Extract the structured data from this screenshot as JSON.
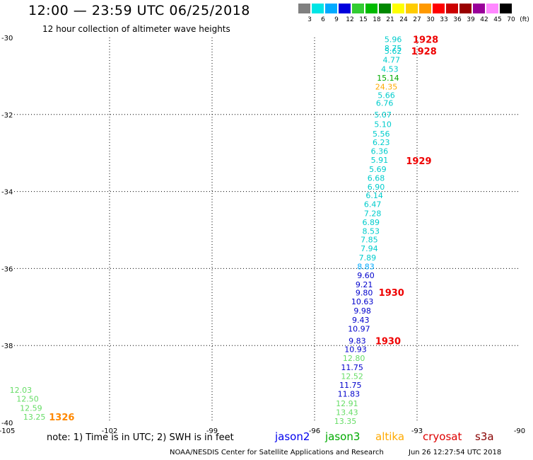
{
  "header": {
    "title": "12:00 — 23:59 UTC 06/25/2018",
    "subtitle": "12 hour collection of altimeter wave heights"
  },
  "colorbar": {
    "labels": [
      "3",
      "6",
      "9",
      "12",
      "15",
      "18",
      "21",
      "24",
      "27",
      "30",
      "33",
      "36",
      "39",
      "42",
      "45",
      "70"
    ],
    "unit": "(ft)",
    "colors": [
      "#808080",
      "#00e5e5",
      "#00aaff",
      "#0000dd",
      "#33cc33",
      "#00bb00",
      "#008800",
      "#ffff00",
      "#ffcc00",
      "#ff9900",
      "#ff0000",
      "#cc0000",
      "#990000",
      "#990099",
      "#ff88ff",
      "#000000"
    ]
  },
  "axes": {
    "x_ticks": [
      {
        "value": -105,
        "label": "-105"
      },
      {
        "value": -102,
        "label": "-102"
      },
      {
        "value": -99,
        "label": "-99"
      },
      {
        "value": -96,
        "label": "-96"
      },
      {
        "value": -93,
        "label": "-93"
      },
      {
        "value": -90,
        "label": "-90"
      }
    ],
    "y_ticks": [
      {
        "value": -30,
        "label": "-30"
      },
      {
        "value": -32,
        "label": "-32"
      },
      {
        "value": -34,
        "label": "-34"
      },
      {
        "value": -36,
        "label": "-36"
      },
      {
        "value": -38,
        "label": "-38"
      },
      {
        "value": -40,
        "label": "-40"
      }
    ]
  },
  "observations": [
    {
      "lon": -93.7,
      "lat": -30.05,
      "v": "5.96",
      "c": "#00cccc"
    },
    {
      "lon": -93.7,
      "lat": -30.28,
      "v": "8.75",
      "c": "#00cccc"
    },
    {
      "lon": -93.7,
      "lat": -30.35,
      "v": "5.62",
      "c": "#00cccc"
    },
    {
      "lon": -93.75,
      "lat": -30.58,
      "v": "4.77",
      "c": "#00cccc"
    },
    {
      "lon": -93.8,
      "lat": -30.82,
      "v": "4.53",
      "c": "#00cccc"
    },
    {
      "lon": -93.85,
      "lat": -31.05,
      "v": "15.14",
      "c": "#00aa00"
    },
    {
      "lon": -93.9,
      "lat": -31.28,
      "v": "24.35",
      "c": "#ffaa00"
    },
    {
      "lon": -93.9,
      "lat": -31.5,
      "v": "5.66",
      "c": "#00cccc"
    },
    {
      "lon": -93.95,
      "lat": -31.7,
      "v": "6.76",
      "c": "#00cccc"
    },
    {
      "lon": -94.0,
      "lat": -32.0,
      "v": "5.07",
      "c": "#00cccc"
    },
    {
      "lon": -94.0,
      "lat": -32.25,
      "v": "5.10",
      "c": "#00cccc"
    },
    {
      "lon": -94.05,
      "lat": -32.5,
      "v": "5.56",
      "c": "#00cccc"
    },
    {
      "lon": -94.05,
      "lat": -32.72,
      "v": "6.23",
      "c": "#00cccc"
    },
    {
      "lon": -94.1,
      "lat": -32.95,
      "v": "6.36",
      "c": "#00cccc"
    },
    {
      "lon": -94.1,
      "lat": -33.18,
      "v": "5.91",
      "c": "#00cccc"
    },
    {
      "lon": -94.15,
      "lat": -33.42,
      "v": "5.69",
      "c": "#00cccc"
    },
    {
      "lon": -94.2,
      "lat": -33.65,
      "v": "6.68",
      "c": "#00cccc"
    },
    {
      "lon": -94.2,
      "lat": -33.88,
      "v": "6.90",
      "c": "#00cccc"
    },
    {
      "lon": -94.25,
      "lat": -34.1,
      "v": "6.14",
      "c": "#00cccc"
    },
    {
      "lon": -94.3,
      "lat": -34.33,
      "v": "6.47",
      "c": "#00cccc"
    },
    {
      "lon": -94.3,
      "lat": -34.57,
      "v": "7.28",
      "c": "#00cccc"
    },
    {
      "lon": -94.35,
      "lat": -34.8,
      "v": "6.89",
      "c": "#00cccc"
    },
    {
      "lon": -94.35,
      "lat": -35.03,
      "v": "8.53",
      "c": "#00cccc"
    },
    {
      "lon": -94.4,
      "lat": -35.25,
      "v": "7.85",
      "c": "#00cccc"
    },
    {
      "lon": -94.4,
      "lat": -35.48,
      "v": "7.94",
      "c": "#00cccc"
    },
    {
      "lon": -94.45,
      "lat": -35.72,
      "v": "7.89",
      "c": "#00cccc"
    },
    {
      "lon": -94.5,
      "lat": -35.95,
      "v": "8.83",
      "c": "#00aaff"
    },
    {
      "lon": -94.5,
      "lat": -36.18,
      "v": "9.60",
      "c": "#0000cc"
    },
    {
      "lon": -94.55,
      "lat": -36.42,
      "v": "9.21",
      "c": "#0000cc"
    },
    {
      "lon": -94.55,
      "lat": -36.63,
      "v": "9.80",
      "c": "#0000cc"
    },
    {
      "lon": -94.6,
      "lat": -36.86,
      "v": "10.63",
      "c": "#0000cc"
    },
    {
      "lon": -94.6,
      "lat": -37.1,
      "v": "9.98",
      "c": "#0000cc"
    },
    {
      "lon": -94.65,
      "lat": -37.33,
      "v": "9.43",
      "c": "#0000cc"
    },
    {
      "lon": -94.7,
      "lat": -37.56,
      "v": "10.97",
      "c": "#0000cc"
    },
    {
      "lon": -94.75,
      "lat": -37.88,
      "v": "9.83",
      "c": "#0000cc"
    },
    {
      "lon": -94.8,
      "lat": -38.1,
      "v": "10.93",
      "c": "#0000cc"
    },
    {
      "lon": -94.85,
      "lat": -38.33,
      "v": "12.80",
      "c": "#66dd66"
    },
    {
      "lon": -94.9,
      "lat": -38.57,
      "v": "11.75",
      "c": "#0000cc"
    },
    {
      "lon": -94.9,
      "lat": -38.8,
      "v": "12.52",
      "c": "#66dd66"
    },
    {
      "lon": -94.95,
      "lat": -39.03,
      "v": "11.75",
      "c": "#0000cc"
    },
    {
      "lon": -95.0,
      "lat": -39.26,
      "v": "11.83",
      "c": "#0000cc"
    },
    {
      "lon": -95.05,
      "lat": -39.5,
      "v": "12.91",
      "c": "#66dd66"
    },
    {
      "lon": -95.05,
      "lat": -39.73,
      "v": "13.43",
      "c": "#66dd66"
    },
    {
      "lon": -95.1,
      "lat": -39.96,
      "v": "13.35",
      "c": "#66dd66"
    },
    {
      "lon": -104.6,
      "lat": -39.15,
      "v": "12.03",
      "c": "#66dd66"
    },
    {
      "lon": -104.4,
      "lat": -39.38,
      "v": "12.50",
      "c": "#66dd66"
    },
    {
      "lon": -104.3,
      "lat": -39.62,
      "v": "12.59",
      "c": "#66dd66"
    },
    {
      "lon": -104.2,
      "lat": -39.85,
      "v": "13.25",
      "c": "#66dd66"
    }
  ],
  "pass_times": [
    {
      "lon": -92.75,
      "lat": -30.05,
      "t": "1928",
      "c": "#ee0000"
    },
    {
      "lon": -92.8,
      "lat": -30.35,
      "t": "1928",
      "c": "#ee0000"
    },
    {
      "lon": -92.95,
      "lat": -33.2,
      "t": "1929",
      "c": "#ee0000"
    },
    {
      "lon": -93.75,
      "lat": -36.62,
      "t": "1930",
      "c": "#ee0000"
    },
    {
      "lon": -93.85,
      "lat": -37.88,
      "t": "1930",
      "c": "#ee0000"
    },
    {
      "lon": -103.4,
      "lat": -39.85,
      "t": "1326",
      "c": "#ff8800"
    }
  ],
  "footer": {
    "note": "note:  1) Time is in UTC;  2) SWH is in feet",
    "legend": [
      {
        "name": "jason2",
        "color": "#0000ee"
      },
      {
        "name": "jason3",
        "color": "#00aa00"
      },
      {
        "name": "altika",
        "color": "#ffaa00"
      },
      {
        "name": "cryosat",
        "color": "#dd0000"
      },
      {
        "name": "s3a",
        "color": "#880000"
      }
    ],
    "credit": "NOAA/NESDIS Center for Satellite Applications and Research",
    "timestamp": "Jun 26 12:27:54 UTC 2018"
  }
}
